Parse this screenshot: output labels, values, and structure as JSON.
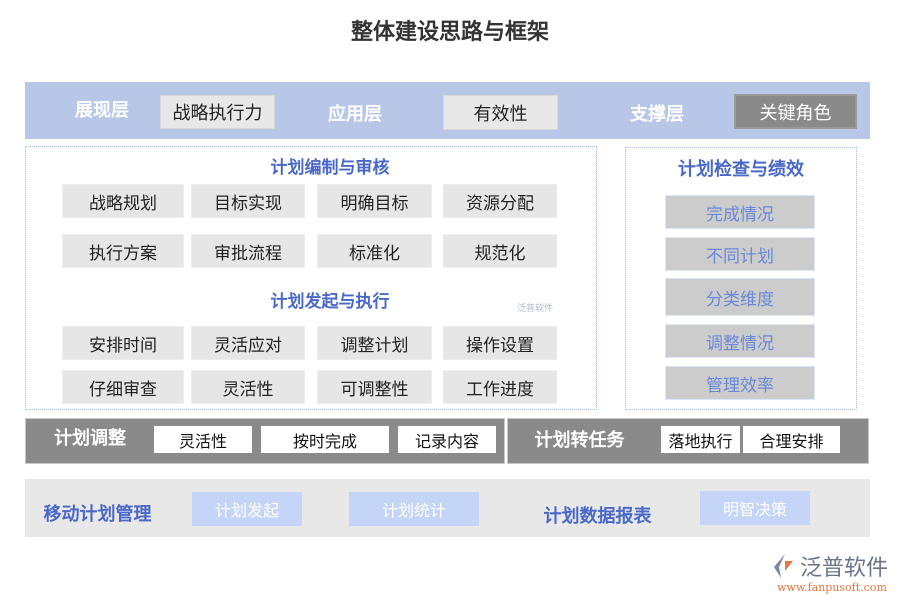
{
  "title": "整体建设思路与框架",
  "top_bar": {
    "layers": [
      {
        "label": "展现层",
        "value": "战略执行力"
      },
      {
        "label": "应用层",
        "value": "有效性"
      },
      {
        "label": "支撑层",
        "value": "关键角色"
      }
    ]
  },
  "left_panel": {
    "section1": {
      "heading": "计划编制与审核",
      "items": [
        "战略规划",
        "目标实现",
        "明确目标",
        "资源分配",
        "执行方案",
        "审批流程",
        "标准化",
        "规范化"
      ]
    },
    "section2": {
      "heading": "计划发起与执行",
      "items": [
        "安排时间",
        "灵活应对",
        "调整计划",
        "操作设置",
        "仔细审查",
        "灵活性",
        "可调整性",
        "工作进度"
      ]
    },
    "watermark": "泛普软件"
  },
  "right_panel": {
    "heading": "计划检查与绩效",
    "items": [
      "完成情况",
      "不同计划",
      "分类维度",
      "调整情况",
      "管理效率"
    ]
  },
  "adjust_bar": {
    "label": "计划调整",
    "items": [
      "灵活性",
      "按时完成",
      "记录内容"
    ]
  },
  "task_bar": {
    "label": "计划转任务",
    "items": [
      "落地执行",
      "合理安排"
    ]
  },
  "bottom": {
    "mobile_label": "移动计划管理",
    "mobile_items": [
      "计划发起",
      "计划统计"
    ],
    "report_label": "计划数据报表",
    "report_items": [
      "明智决策"
    ]
  },
  "logo": {
    "name": "泛普软件",
    "url": "www.fanpusoft.com"
  },
  "colors": {
    "top_bar": "#b8c7e8",
    "heading_blue": "#4a68c8",
    "dark_bar": "#8a8a8a",
    "light_blue": "#c5d5f7"
  }
}
